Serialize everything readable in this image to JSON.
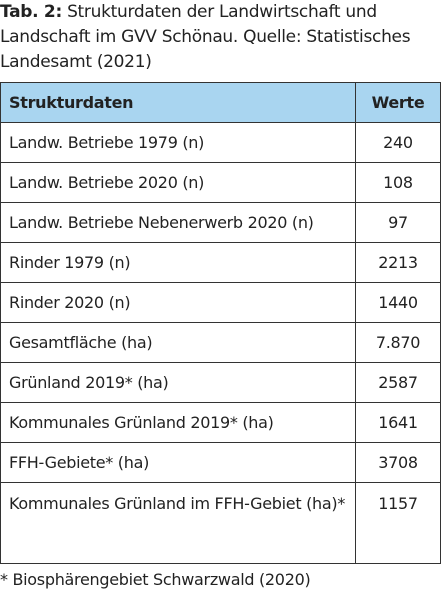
{
  "caption": {
    "label": "Tab. 2:",
    "text": "Strukturdaten der Landwirtschaft und Landschaft im GVV Schönau. Quelle: Statistisches Landesamt (2021)"
  },
  "table": {
    "header": [
      "Strukturdaten",
      "Werte"
    ],
    "rows": [
      [
        "Landw. Betriebe 1979 (n)",
        "240"
      ],
      [
        "Landw. Betriebe 2020 (n)",
        "108"
      ],
      [
        "Landw. Betriebe Nebenerwerb 2020 (n)",
        "97"
      ],
      [
        "Rinder 1979 (n)",
        "2213"
      ],
      [
        "Rinder 2020 (n)",
        "1440"
      ],
      [
        "Gesamtfläche (ha)",
        "7.870"
      ],
      [
        "Grünland 2019* (ha)",
        "2587"
      ],
      [
        "Kommunales Grünland 2019* (ha)",
        "1641"
      ],
      [
        "FFH-Gebiete* (ha)",
        "3708"
      ],
      [
        "Kommunales Grünland im FFH-Gebiet (ha)*",
        "1157"
      ]
    ]
  },
  "footnote": "* Biosphärengebiet Schwarzwald (2020)"
}
